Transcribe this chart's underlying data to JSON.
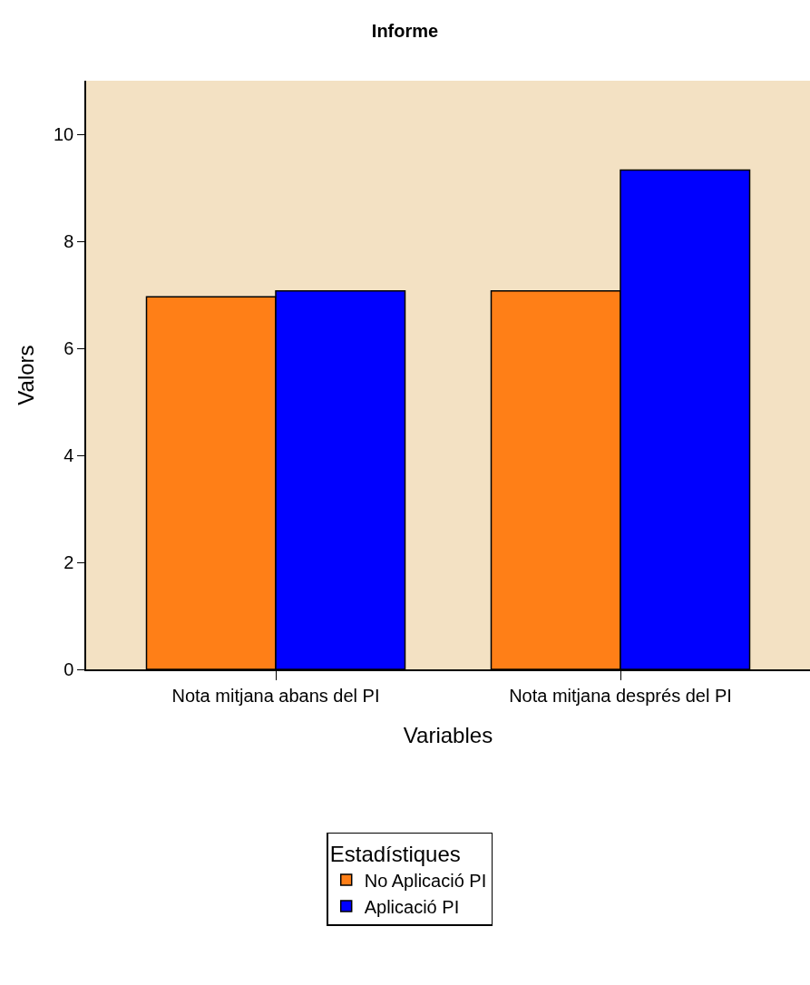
{
  "chart_data": {
    "type": "bar",
    "title": "Informe",
    "xlabel": "Variables",
    "ylabel": "Valors",
    "legend_title": "Estadístiques",
    "categories": [
      "Nota mitjana abans del PI",
      "Nota mitjana després del PI"
    ],
    "series": [
      {
        "name": "No Aplicació PI",
        "color": "#ff7f17",
        "values": [
          6.96,
          7.07
        ]
      },
      {
        "name": "Aplicació PI",
        "color": "#0000ff",
        "values": [
          7.07,
          9.33
        ]
      }
    ],
    "ylim": [
      0,
      11
    ],
    "yticks": [
      0,
      2,
      4,
      6,
      8,
      10
    ],
    "grid": false,
    "legend": "bottom"
  }
}
